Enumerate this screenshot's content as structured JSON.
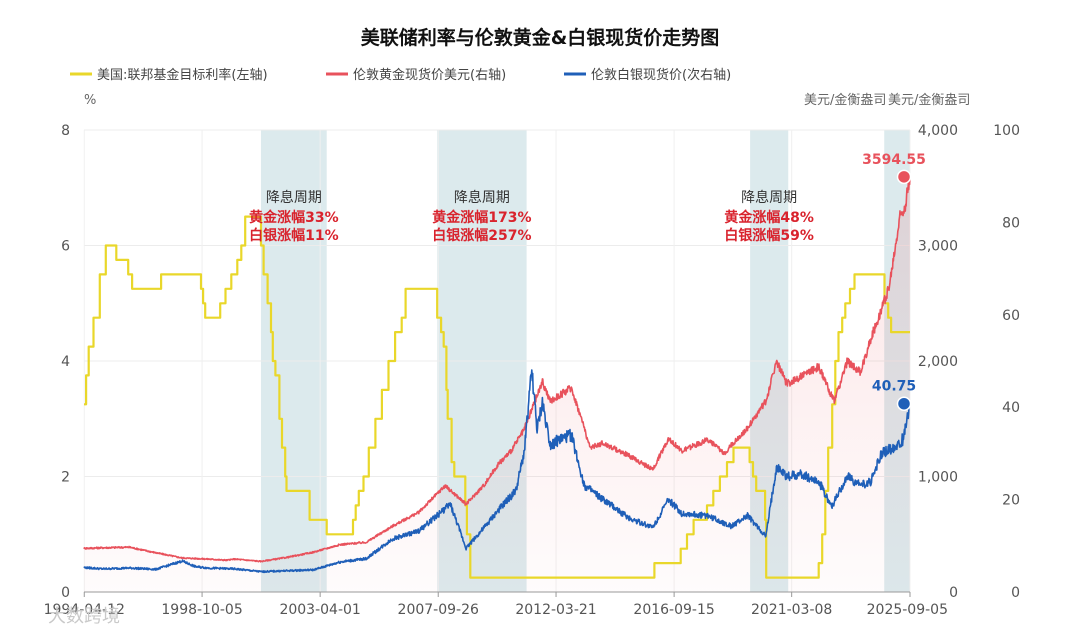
{
  "chart_data": {
    "type": "line",
    "title": "美联储利率与伦敦黄金&白银现货价走势图",
    "legend": [
      {
        "name": "美国:联邦基金目标利率(左轴)",
        "color": "#e9d72a"
      },
      {
        "name": "伦敦黄金现货价美元(右轴)",
        "color": "#e8525c"
      },
      {
        "name": "伦敦白银现货价(次右轴)",
        "color": "#1f5fb8"
      }
    ],
    "left_axis": {
      "unit": "%",
      "min": 0,
      "max": 8,
      "ticks": [
        "0",
        "2",
        "4",
        "6",
        "8"
      ]
    },
    "right_axis": {
      "unit": "美元/金衡盎司",
      "min": 0,
      "max": 4000,
      "ticks": [
        "0",
        "1,000",
        "2,000",
        "3,000",
        "4,000"
      ]
    },
    "right2_axis": {
      "unit": "美元/金衡盎司",
      "min": 0,
      "max": 100,
      "ticks": [
        "0",
        "20",
        "40",
        "60",
        "80",
        "100"
      ]
    },
    "x_axis": {
      "start": 1994.27,
      "end": 2025.68,
      "ticks": [
        {
          "label": "1994-04-12",
          "x": 1994.28
        },
        {
          "label": "1998-10-05",
          "x": 1998.76
        },
        {
          "label": "2003-04-01",
          "x": 2003.25
        },
        {
          "label": "2007-09-26",
          "x": 2007.74
        },
        {
          "label": "2012-03-21",
          "x": 2012.22
        },
        {
          "label": "2016-09-15",
          "x": 2016.71
        },
        {
          "label": "2021-03-08",
          "x": 2021.18
        },
        {
          "label": "2025-09-05",
          "x": 2025.68
        }
      ]
    },
    "easing_cycles": [
      {
        "start": 2001.0,
        "end": 2003.5,
        "title": "降息周期",
        "gold": "黄金涨幅33%",
        "silver": "白银涨幅11%"
      },
      {
        "start": 2007.7,
        "end": 2011.1,
        "title": "降息周期",
        "gold": "黄金涨幅173%",
        "silver": "白银涨幅257%"
      },
      {
        "start": 2019.6,
        "end": 2021.05,
        "title": "降息周期",
        "gold": "黄金涨幅48%",
        "silver": "白银涨幅59%"
      },
      {
        "start": 2024.7,
        "end": 2025.68,
        "title": "",
        "gold": "",
        "silver": ""
      }
    ],
    "series": [
      {
        "name": "美国:联邦基金目标利率(左轴)",
        "axis": "left",
        "color": "#e9d72a",
        "step": true,
        "points": [
          [
            1994.27,
            3.25
          ],
          [
            1994.35,
            3.75
          ],
          [
            1994.45,
            4.25
          ],
          [
            1994.63,
            4.75
          ],
          [
            1994.87,
            5.5
          ],
          [
            1995.1,
            6.0
          ],
          [
            1995.5,
            5.75
          ],
          [
            1995.95,
            5.5
          ],
          [
            1996.1,
            5.25
          ],
          [
            1997.2,
            5.5
          ],
          [
            1998.72,
            5.25
          ],
          [
            1998.8,
            5.0
          ],
          [
            1998.88,
            4.75
          ],
          [
            1999.45,
            5.0
          ],
          [
            1999.65,
            5.25
          ],
          [
            1999.87,
            5.5
          ],
          [
            2000.1,
            5.75
          ],
          [
            2000.25,
            6.0
          ],
          [
            2000.4,
            6.5
          ],
          [
            2001.0,
            6.0
          ],
          [
            2001.1,
            5.5
          ],
          [
            2001.25,
            5.0
          ],
          [
            2001.38,
            4.5
          ],
          [
            2001.45,
            4.0
          ],
          [
            2001.55,
            3.75
          ],
          [
            2001.7,
            3.0
          ],
          [
            2001.8,
            2.5
          ],
          [
            2001.92,
            2.0
          ],
          [
            2001.97,
            1.75
          ],
          [
            2002.85,
            1.25
          ],
          [
            2003.5,
            1.0
          ],
          [
            2004.5,
            1.25
          ],
          [
            2004.6,
            1.5
          ],
          [
            2004.72,
            1.75
          ],
          [
            2004.9,
            2.0
          ],
          [
            2005.1,
            2.5
          ],
          [
            2005.35,
            3.0
          ],
          [
            2005.6,
            3.5
          ],
          [
            2005.85,
            4.0
          ],
          [
            2006.1,
            4.5
          ],
          [
            2006.35,
            4.75
          ],
          [
            2006.5,
            5.25
          ],
          [
            2007.7,
            4.75
          ],
          [
            2007.85,
            4.5
          ],
          [
            2007.95,
            4.25
          ],
          [
            2008.05,
            3.5
          ],
          [
            2008.1,
            3.0
          ],
          [
            2008.25,
            2.25
          ],
          [
            2008.35,
            2.0
          ],
          [
            2008.77,
            1.5
          ],
          [
            2008.83,
            1.0
          ],
          [
            2008.96,
            0.25
          ],
          [
            2015.96,
            0.5
          ],
          [
            2016.96,
            0.75
          ],
          [
            2017.2,
            1.0
          ],
          [
            2017.45,
            1.25
          ],
          [
            2017.96,
            1.5
          ],
          [
            2018.2,
            1.75
          ],
          [
            2018.45,
            2.0
          ],
          [
            2018.72,
            2.25
          ],
          [
            2018.97,
            2.5
          ],
          [
            2019.58,
            2.25
          ],
          [
            2019.71,
            2.0
          ],
          [
            2019.83,
            1.75
          ],
          [
            2020.17,
            1.25
          ],
          [
            2020.21,
            0.25
          ],
          [
            2022.21,
            0.5
          ],
          [
            2022.34,
            1.0
          ],
          [
            2022.46,
            1.75
          ],
          [
            2022.57,
            2.5
          ],
          [
            2022.72,
            3.25
          ],
          [
            2022.84,
            4.0
          ],
          [
            2022.96,
            4.5
          ],
          [
            2023.1,
            4.75
          ],
          [
            2023.22,
            5.0
          ],
          [
            2023.4,
            5.25
          ],
          [
            2023.57,
            5.5
          ],
          [
            2024.71,
            5.0
          ],
          [
            2024.85,
            4.75
          ],
          [
            2024.96,
            4.5
          ],
          [
            2025.68,
            4.5
          ]
        ]
      },
      {
        "name": "伦敦黄金现货价美元(右轴)",
        "axis": "right",
        "color": "#e8525c",
        "points": [
          [
            1994.27,
            378
          ],
          [
            1995.0,
            383
          ],
          [
            1996.0,
            388
          ],
          [
            1997.0,
            340
          ],
          [
            1998.0,
            295
          ],
          [
            1999.0,
            285
          ],
          [
            1999.7,
            275
          ],
          [
            2000.0,
            285
          ],
          [
            2001.0,
            265
          ],
          [
            2002.0,
            300
          ],
          [
            2003.0,
            345
          ],
          [
            2004.0,
            410
          ],
          [
            2005.0,
            430
          ],
          [
            2006.0,
            570
          ],
          [
            2007.0,
            690
          ],
          [
            2008.0,
            920
          ],
          [
            2008.8,
            760
          ],
          [
            2009.5,
            930
          ],
          [
            2010.0,
            1100
          ],
          [
            2010.5,
            1220
          ],
          [
            2011.0,
            1400
          ],
          [
            2011.7,
            1820
          ],
          [
            2012.0,
            1650
          ],
          [
            2012.8,
            1770
          ],
          [
            2013.3,
            1420
          ],
          [
            2013.5,
            1250
          ],
          [
            2014.0,
            1290
          ],
          [
            2015.0,
            1180
          ],
          [
            2015.9,
            1060
          ],
          [
            2016.5,
            1330
          ],
          [
            2017.0,
            1220
          ],
          [
            2018.0,
            1320
          ],
          [
            2018.6,
            1200
          ],
          [
            2019.5,
            1420
          ],
          [
            2020.2,
            1650
          ],
          [
            2020.6,
            2000
          ],
          [
            2021.0,
            1800
          ],
          [
            2022.2,
            1950
          ],
          [
            2022.8,
            1650
          ],
          [
            2023.3,
            2000
          ],
          [
            2023.8,
            1900
          ],
          [
            2024.2,
            2200
          ],
          [
            2024.6,
            2450
          ],
          [
            2024.9,
            2650
          ],
          [
            2025.3,
            3250
          ],
          [
            2025.5,
            3350
          ],
          [
            2025.68,
            3594.55
          ]
        ]
      },
      {
        "name": "伦敦白银现货价(次右轴)",
        "axis": "right2",
        "color": "#1f5fb8",
        "points": [
          [
            1994.27,
            5.3
          ],
          [
            1995.0,
            5.0
          ],
          [
            1996.0,
            5.2
          ],
          [
            1997.0,
            4.9
          ],
          [
            1998.0,
            6.7
          ],
          [
            1998.5,
            5.5
          ],
          [
            1999.0,
            5.2
          ],
          [
            2000.0,
            5.0
          ],
          [
            2001.0,
            4.4
          ],
          [
            2002.0,
            4.6
          ],
          [
            2003.0,
            4.8
          ],
          [
            2004.0,
            6.5
          ],
          [
            2005.0,
            7.2
          ],
          [
            2006.0,
            11.5
          ],
          [
            2007.0,
            13.2
          ],
          [
            2008.2,
            19.0
          ],
          [
            2008.8,
            9.5
          ],
          [
            2009.5,
            14.0
          ],
          [
            2010.0,
            17.5
          ],
          [
            2010.7,
            22.0
          ],
          [
            2011.0,
            30.0
          ],
          [
            2011.3,
            48.0
          ],
          [
            2011.5,
            35.0
          ],
          [
            2011.7,
            41.0
          ],
          [
            2012.0,
            32.0
          ],
          [
            2012.8,
            34.0
          ],
          [
            2013.3,
            23.0
          ],
          [
            2014.0,
            20.0
          ],
          [
            2015.0,
            16.0
          ],
          [
            2015.9,
            14.0
          ],
          [
            2016.5,
            20.0
          ],
          [
            2017.0,
            17.0
          ],
          [
            2018.0,
            16.5
          ],
          [
            2018.9,
            14.2
          ],
          [
            2019.5,
            16.5
          ],
          [
            2020.2,
            12.0
          ],
          [
            2020.6,
            27.0
          ],
          [
            2021.0,
            25.0
          ],
          [
            2021.5,
            25.5
          ],
          [
            2022.2,
            24.0
          ],
          [
            2022.7,
            18.5
          ],
          [
            2023.3,
            25.0
          ],
          [
            2023.8,
            23.0
          ],
          [
            2024.2,
            24.0
          ],
          [
            2024.6,
            30.0
          ],
          [
            2025.0,
            31.0
          ],
          [
            2025.4,
            33.0
          ],
          [
            2025.68,
            40.75
          ]
        ]
      }
    ],
    "end_labels": [
      {
        "series": "伦敦黄金现货价美元(右轴)",
        "text": "3594.55",
        "axis": "right",
        "value": 3594.55
      },
      {
        "series": "伦敦白银现货价(次右轴)",
        "text": "40.75",
        "axis": "right2",
        "value": 40.75
      }
    ]
  },
  "watermark": "大数跨境"
}
